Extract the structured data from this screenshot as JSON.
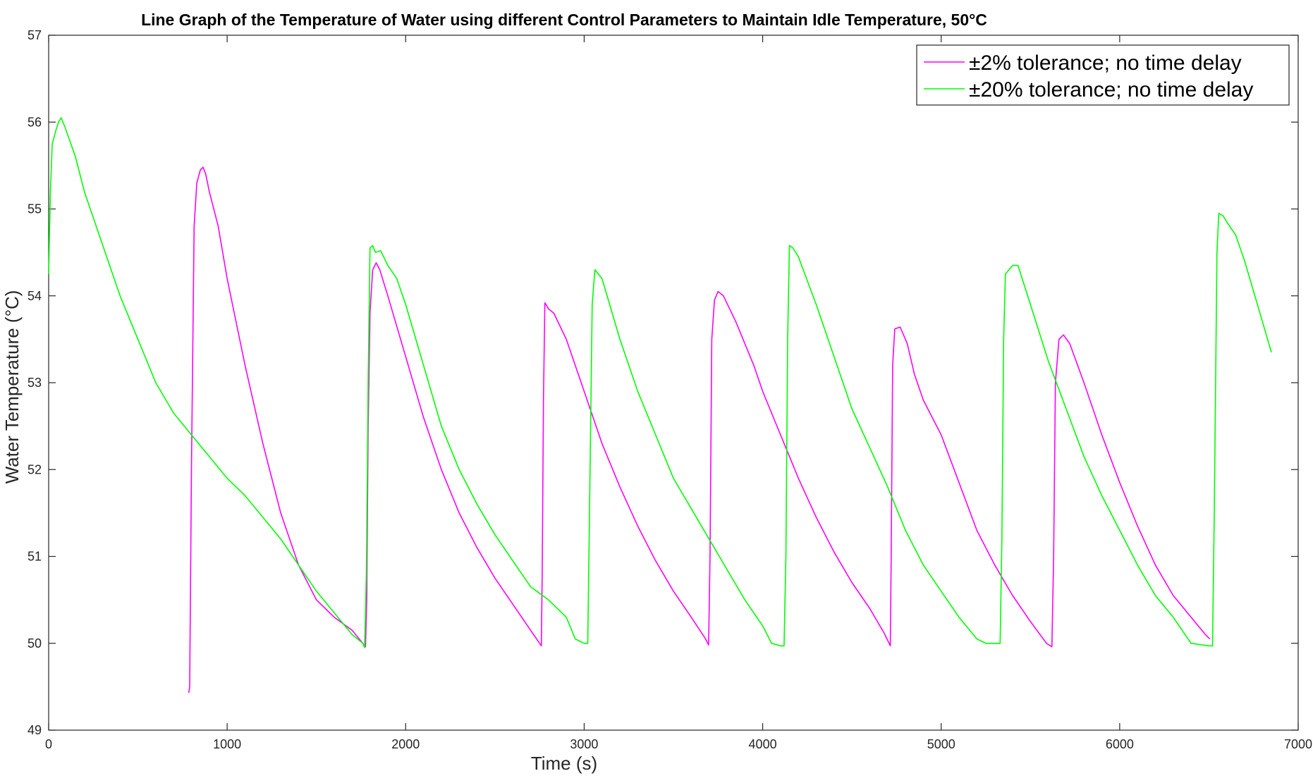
{
  "chart_data": {
    "type": "line",
    "title": "Line Graph of the Temperature of Water using different Control Parameters to Maintain Idle Temperature, 50°C",
    "xlabel": "Time (s)",
    "ylabel": "Water Temperature (°C)",
    "xlim": [
      0,
      7000
    ],
    "ylim": [
      49,
      57
    ],
    "xticks": [
      0,
      1000,
      2000,
      3000,
      4000,
      5000,
      6000,
      7000
    ],
    "yticks": [
      49,
      50,
      51,
      52,
      53,
      54,
      55,
      56,
      57
    ],
    "grid": false,
    "legend_position": "top-right",
    "series": [
      {
        "name": "±2% tolerance; no time delay",
        "color": "#ff00ff",
        "points": [
          [
            785,
            49.43
          ],
          [
            790,
            49.5
          ],
          [
            800,
            52.0
          ],
          [
            815,
            54.8
          ],
          [
            830,
            55.3
          ],
          [
            850,
            55.45
          ],
          [
            865,
            55.48
          ],
          [
            880,
            55.4
          ],
          [
            900,
            55.2
          ],
          [
            950,
            54.8
          ],
          [
            1000,
            54.2
          ],
          [
            1100,
            53.2
          ],
          [
            1200,
            52.3
          ],
          [
            1300,
            51.5
          ],
          [
            1400,
            50.9
          ],
          [
            1500,
            50.5
          ],
          [
            1600,
            50.3
          ],
          [
            1700,
            50.15
          ],
          [
            1760,
            50.0
          ],
          [
            1775,
            49.96
          ],
          [
            1782,
            50.5
          ],
          [
            1790,
            52.5
          ],
          [
            1800,
            53.8
          ],
          [
            1815,
            54.3
          ],
          [
            1835,
            54.38
          ],
          [
            1855,
            54.3
          ],
          [
            1900,
            54.0
          ],
          [
            2000,
            53.3
          ],
          [
            2100,
            52.6
          ],
          [
            2200,
            52.0
          ],
          [
            2300,
            51.5
          ],
          [
            2400,
            51.1
          ],
          [
            2500,
            50.75
          ],
          [
            2600,
            50.45
          ],
          [
            2700,
            50.15
          ],
          [
            2760,
            49.97
          ],
          [
            2765,
            50.8
          ],
          [
            2772,
            52.8
          ],
          [
            2780,
            53.92
          ],
          [
            2800,
            53.85
          ],
          [
            2830,
            53.8
          ],
          [
            2900,
            53.5
          ],
          [
            3000,
            52.9
          ],
          [
            3100,
            52.3
          ],
          [
            3200,
            51.8
          ],
          [
            3300,
            51.35
          ],
          [
            3400,
            50.95
          ],
          [
            3500,
            50.6
          ],
          [
            3600,
            50.3
          ],
          [
            3680,
            50.05
          ],
          [
            3697,
            49.98
          ],
          [
            3705,
            51.0
          ],
          [
            3715,
            53.5
          ],
          [
            3730,
            53.95
          ],
          [
            3750,
            54.05
          ],
          [
            3780,
            54.0
          ],
          [
            3850,
            53.7
          ],
          [
            3950,
            53.2
          ],
          [
            4000,
            52.9
          ],
          [
            4100,
            52.4
          ],
          [
            4200,
            51.9
          ],
          [
            4300,
            51.45
          ],
          [
            4400,
            51.05
          ],
          [
            4500,
            50.7
          ],
          [
            4600,
            50.4
          ],
          [
            4680,
            50.12
          ],
          [
            4715,
            49.97
          ],
          [
            4720,
            51.0
          ],
          [
            4728,
            53.2
          ],
          [
            4740,
            53.62
          ],
          [
            4770,
            53.64
          ],
          [
            4810,
            53.45
          ],
          [
            4850,
            53.1
          ],
          [
            4900,
            52.8
          ],
          [
            5000,
            52.4
          ],
          [
            5100,
            51.85
          ],
          [
            5200,
            51.3
          ],
          [
            5300,
            50.9
          ],
          [
            5400,
            50.55
          ],
          [
            5500,
            50.25
          ],
          [
            5590,
            50.0
          ],
          [
            5620,
            49.96
          ],
          [
            5630,
            51.0
          ],
          [
            5640,
            53.0
          ],
          [
            5660,
            53.5
          ],
          [
            5685,
            53.55
          ],
          [
            5720,
            53.45
          ],
          [
            5800,
            53.0
          ],
          [
            5900,
            52.4
          ],
          [
            6000,
            51.85
          ],
          [
            6100,
            51.35
          ],
          [
            6200,
            50.9
          ],
          [
            6300,
            50.55
          ],
          [
            6400,
            50.3
          ],
          [
            6480,
            50.1
          ],
          [
            6505,
            50.05
          ]
        ]
      },
      {
        "name": "±20% tolerance; no time delay",
        "color": "#00ff00",
        "points": [
          [
            0,
            54.25
          ],
          [
            10,
            55.2
          ],
          [
            20,
            55.75
          ],
          [
            40,
            55.9
          ],
          [
            55,
            56.0
          ],
          [
            70,
            56.05
          ],
          [
            90,
            55.95
          ],
          [
            150,
            55.6
          ],
          [
            200,
            55.2
          ],
          [
            300,
            54.6
          ],
          [
            400,
            54.0
          ],
          [
            500,
            53.5
          ],
          [
            600,
            53.0
          ],
          [
            700,
            52.65
          ],
          [
            800,
            52.4
          ],
          [
            900,
            52.15
          ],
          [
            1000,
            51.9
          ],
          [
            1100,
            51.7
          ],
          [
            1200,
            51.45
          ],
          [
            1300,
            51.2
          ],
          [
            1400,
            50.9
          ],
          [
            1500,
            50.6
          ],
          [
            1600,
            50.35
          ],
          [
            1700,
            50.1
          ],
          [
            1760,
            50.0
          ],
          [
            1770,
            49.95
          ],
          [
            1780,
            50.8
          ],
          [
            1790,
            53.0
          ],
          [
            1800,
            54.55
          ],
          [
            1815,
            54.58
          ],
          [
            1830,
            54.5
          ],
          [
            1860,
            54.52
          ],
          [
            1900,
            54.35
          ],
          [
            1950,
            54.2
          ],
          [
            2000,
            53.9
          ],
          [
            2100,
            53.2
          ],
          [
            2200,
            52.5
          ],
          [
            2300,
            52.0
          ],
          [
            2400,
            51.6
          ],
          [
            2500,
            51.25
          ],
          [
            2600,
            50.95
          ],
          [
            2700,
            50.65
          ],
          [
            2800,
            50.5
          ],
          [
            2900,
            50.3
          ],
          [
            2950,
            50.05
          ],
          [
            3000,
            50.0
          ],
          [
            3020,
            50.0
          ],
          [
            3030,
            51.5
          ],
          [
            3045,
            53.9
          ],
          [
            3060,
            54.3
          ],
          [
            3080,
            54.25
          ],
          [
            3100,
            54.2
          ],
          [
            3200,
            53.5
          ],
          [
            3300,
            52.9
          ],
          [
            3400,
            52.4
          ],
          [
            3500,
            51.9
          ],
          [
            3600,
            51.55
          ],
          [
            3700,
            51.2
          ],
          [
            3800,
            50.85
          ],
          [
            3900,
            50.5
          ],
          [
            4000,
            50.2
          ],
          [
            4050,
            50.0
          ],
          [
            4100,
            49.97
          ],
          [
            4120,
            49.97
          ],
          [
            4130,
            51.0
          ],
          [
            4140,
            53.5
          ],
          [
            4150,
            54.58
          ],
          [
            4170,
            54.55
          ],
          [
            4200,
            54.45
          ],
          [
            4300,
            53.9
          ],
          [
            4400,
            53.3
          ],
          [
            4500,
            52.7
          ],
          [
            4600,
            52.25
          ],
          [
            4700,
            51.8
          ],
          [
            4800,
            51.3
          ],
          [
            4900,
            50.9
          ],
          [
            5000,
            50.6
          ],
          [
            5100,
            50.3
          ],
          [
            5200,
            50.05
          ],
          [
            5250,
            50.0
          ],
          [
            5330,
            50.0
          ],
          [
            5340,
            51.2
          ],
          [
            5350,
            53.5
          ],
          [
            5360,
            54.25
          ],
          [
            5400,
            54.35
          ],
          [
            5430,
            54.35
          ],
          [
            5500,
            53.9
          ],
          [
            5600,
            53.25
          ],
          [
            5700,
            52.7
          ],
          [
            5800,
            52.15
          ],
          [
            5900,
            51.7
          ],
          [
            6000,
            51.3
          ],
          [
            6100,
            50.9
          ],
          [
            6200,
            50.55
          ],
          [
            6300,
            50.3
          ],
          [
            6400,
            50.0
          ],
          [
            6500,
            49.97
          ],
          [
            6520,
            49.97
          ],
          [
            6530,
            51.5
          ],
          [
            6545,
            54.5
          ],
          [
            6555,
            54.95
          ],
          [
            6580,
            54.92
          ],
          [
            6600,
            54.85
          ],
          [
            6650,
            54.7
          ],
          [
            6700,
            54.4
          ],
          [
            6800,
            53.7
          ],
          [
            6850,
            53.35
          ]
        ]
      }
    ]
  }
}
